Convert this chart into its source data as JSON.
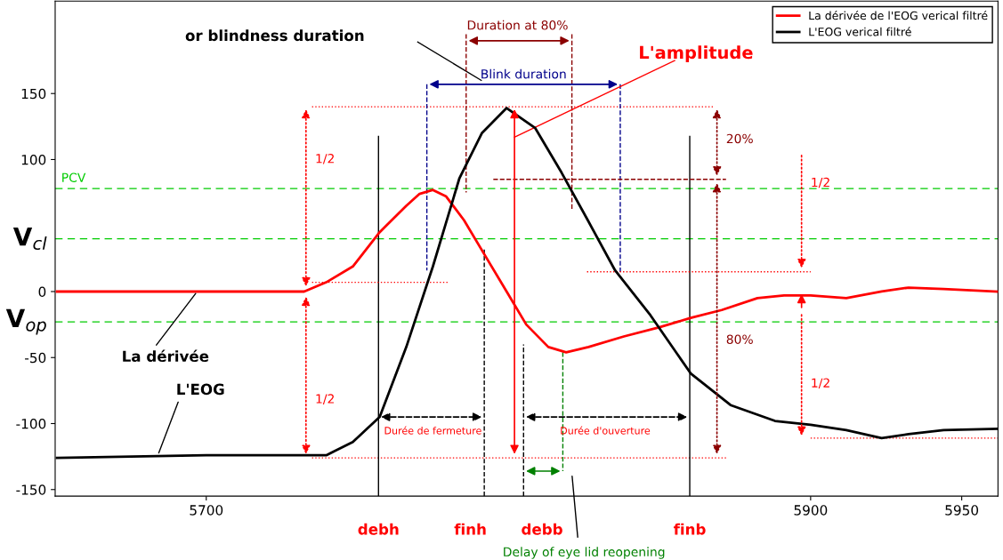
{
  "chart_data": {
    "type": "line",
    "series": [
      {
        "name": "La dérivée de l'EOG verical filtré",
        "color": "#ff0000",
        "x": [
          5650.6,
          5700,
          5732.4,
          5739.7,
          5748.5,
          5757.4,
          5766.2,
          5770.6,
          5775,
          5779.4,
          5785.3,
          5792.6,
          5799.4,
          5805.9,
          5813.2,
          5819.1,
          5826.5,
          5838.2,
          5850,
          5860.3,
          5870.6,
          5882.4,
          5891.2,
          5900,
          5911.8,
          5923.5,
          5932.4,
          5944,
          5961.8
        ],
        "values": [
          0,
          0,
          0,
          7,
          19,
          45,
          65,
          74,
          77,
          72,
          54,
          26,
          0,
          -25,
          -42,
          -46,
          -42,
          -34,
          -27,
          -20,
          -14,
          -5,
          -3,
          -3,
          -5,
          0,
          3,
          2,
          0
        ]
      },
      {
        "name": "L'EOG verical filtré",
        "color": "#000000",
        "x": [
          5650.6,
          5700,
          5739.7,
          5748.5,
          5757.4,
          5766.2,
          5775,
          5783.8,
          5791.2,
          5799.4,
          5808.8,
          5817.6,
          5826.5,
          5835.3,
          5847,
          5860.3,
          5873.5,
          5888.2,
          5900,
          5911.8,
          5923.5,
          5932.4,
          5944,
          5961.8
        ],
        "values": [
          -126,
          -124,
          -124,
          -114,
          -95,
          -42,
          19,
          86,
          120,
          139,
          124,
          90,
          53,
          16,
          -18,
          -62,
          -86,
          -98,
          -101,
          -105,
          -111,
          -108,
          -105,
          -104
        ]
      }
    ],
    "xlim": [
      5650,
      5962
    ],
    "ylim": [
      -155,
      220
    ],
    "xticks": [
      5700,
      5900,
      5950
    ],
    "yticks": [
      -150,
      -100,
      -50,
      0,
      100,
      150
    ],
    "grid": false,
    "legend": "top right",
    "line_style": "solid",
    "marker": "none",
    "ref_lines": [
      {
        "axis": "y",
        "value": 78,
        "label": "PCV",
        "color": "#00cc00",
        "line_style": "dashed"
      },
      {
        "axis": "y",
        "value": 40,
        "label": "V$_{cl}$",
        "color": "#00cc00",
        "line_style": "dashed"
      },
      {
        "axis": "y",
        "value": -23,
        "label": "V$_{op}$",
        "color": "#00cc00",
        "line_style": "dashed"
      },
      {
        "axis": "y",
        "value": 140,
        "color": "#ff0000",
        "line_style": "dotted"
      },
      {
        "axis": "y",
        "value": -126,
        "color": "#ff0000",
        "line_style": "dotted"
      },
      {
        "axis": "x",
        "value": 5757,
        "label": "debh",
        "color": "#000000",
        "line_style": "solid"
      },
      {
        "axis": "x",
        "value": 5792,
        "label": "finh",
        "color": "#000000",
        "line_style": "dashed"
      },
      {
        "axis": "x",
        "value": 5805,
        "label": "debb",
        "color": "#000000",
        "line_style": "dashed"
      },
      {
        "axis": "x",
        "value": 5860,
        "label": "finb",
        "color": "#000000",
        "line_style": "solid"
      }
    ],
    "annotations": [
      "or blindness duration",
      "Duration at 80%",
      "Blink duration",
      "L'amplitude",
      "1/2",
      "1/2",
      "20%",
      "80%",
      "1/2",
      "1/2",
      {
        "text": "La dérivée",
        "x": 5697,
        "y": 0
      },
      {
        "text": "L'EOG",
        "x": 5684,
        "y": -124
      },
      "Durée de fermeture",
      "Durée d'ouverture",
      "Delay of eye lid reopening"
    ]
  }
}
